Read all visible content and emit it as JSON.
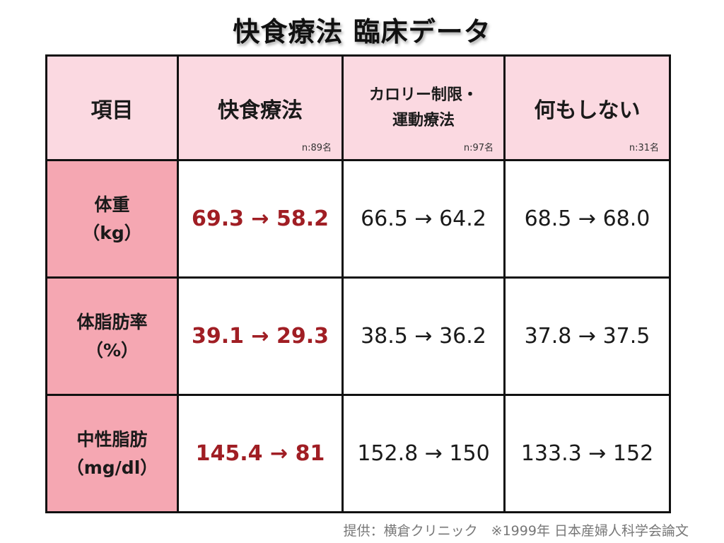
{
  "title": "快食療法 臨床データ",
  "table": {
    "header": {
      "item": "項目",
      "columns": [
        {
          "label": "快食療法",
          "n": "n:89名"
        },
        {
          "label_line1": "カロリー制限・",
          "label_line2": "運動療法",
          "n": "n:97名"
        },
        {
          "label": "何もしない",
          "n": "n:31名"
        }
      ]
    },
    "rows": [
      {
        "item_line1": "体重",
        "item_line2": "（kg）",
        "values": [
          "69.3 → 58.2",
          "66.5 → 64.2",
          "68.5 → 68.0"
        ]
      },
      {
        "item_line1": "体脂肪率",
        "item_line2": "（%）",
        "values": [
          "39.1 → 29.3",
          "38.5 → 36.2",
          "37.8 → 37.5"
        ]
      },
      {
        "item_line1": "中性脂肪",
        "item_line2": "（mg/dl）",
        "values": [
          "145.4 → 81",
          "152.8 → 150",
          "133.3 → 152"
        ]
      }
    ]
  },
  "footer": "提供：横倉クリニック　※1999年 日本産婦人科学会論文",
  "colors": {
    "header_bg": "#fbd9e1",
    "item_bg": "#f5a7b2",
    "highlight_text": "#a01e24",
    "border": "#111111",
    "footer_text": "#777777"
  }
}
